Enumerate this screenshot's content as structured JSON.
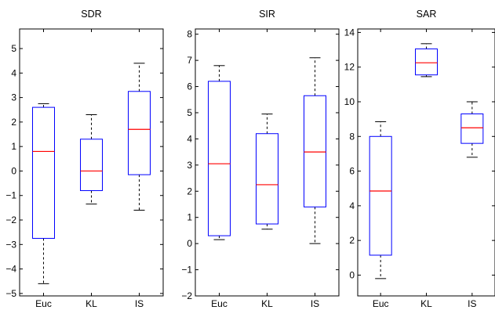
{
  "chart_data": [
    {
      "type": "box",
      "title": "SDR",
      "categories": [
        "Euc",
        "KL",
        "IS"
      ],
      "ylim": [
        -5.1,
        5.8
      ],
      "yticks": [
        -5,
        -4,
        -3,
        -2,
        -1,
        0,
        1,
        2,
        3,
        4,
        5
      ],
      "ytick_labels": [
        "−5",
        "−4",
        "−3",
        "−2",
        "−1",
        "0",
        "1",
        "2",
        "3",
        "4",
        "5"
      ],
      "boxes": [
        {
          "category": "Euc",
          "whisker_low": -4.6,
          "q1": -2.75,
          "median": 0.8,
          "q3": 2.6,
          "whisker_high": 2.75
        },
        {
          "category": "KL",
          "whisker_low": -1.35,
          "q1": -0.8,
          "median": 0.0,
          "q3": 1.3,
          "whisker_high": 2.3
        },
        {
          "category": "IS",
          "whisker_low": -1.6,
          "q1": -0.15,
          "median": 1.7,
          "q3": 3.25,
          "whisker_high": 4.4
        }
      ]
    },
    {
      "type": "box",
      "title": "SIR",
      "categories": [
        "Euc",
        "KL",
        "IS"
      ],
      "ylim": [
        -2.0,
        8.2
      ],
      "yticks": [
        -2,
        -1,
        0,
        1,
        2,
        3,
        4,
        5,
        6,
        7,
        8
      ],
      "ytick_labels": [
        "−2",
        "−1",
        "0",
        "1",
        "2",
        "3",
        "4",
        "5",
        "6",
        "7",
        "8"
      ],
      "boxes": [
        {
          "category": "Euc",
          "whisker_low": 0.15,
          "q1": 0.3,
          "median": 3.05,
          "q3": 6.2,
          "whisker_high": 6.8
        },
        {
          "category": "KL",
          "whisker_low": 0.55,
          "q1": 0.75,
          "median": 2.25,
          "q3": 4.2,
          "whisker_high": 4.95
        },
        {
          "category": "IS",
          "whisker_low": 0.0,
          "q1": 1.4,
          "median": 3.5,
          "q3": 5.65,
          "whisker_high": 7.1
        }
      ]
    },
    {
      "type": "box",
      "title": "SAR",
      "categories": [
        "Euc",
        "KL",
        "IS"
      ],
      "ylim": [
        -1.2,
        14.2
      ],
      "yticks": [
        0,
        2,
        4,
        6,
        8,
        10,
        12,
        14
      ],
      "ytick_labels": [
        "0",
        "2",
        "4",
        "6",
        "8",
        "10",
        "12",
        "14"
      ],
      "boxes": [
        {
          "category": "Euc",
          "whisker_low": -0.2,
          "q1": 1.15,
          "median": 4.85,
          "q3": 8.0,
          "whisker_high": 8.85
        },
        {
          "category": "KL",
          "whisker_low": 11.45,
          "q1": 11.55,
          "median": 12.25,
          "q3": 13.05,
          "whisker_high": 13.35
        },
        {
          "category": "IS",
          "whisker_low": 6.8,
          "q1": 7.6,
          "median": 8.5,
          "q3": 9.3,
          "whisker_high": 10.0
        }
      ]
    }
  ],
  "colors": {
    "box": "#0000ff",
    "median": "#ff0000",
    "whisker": "#000000",
    "axes": "#000000"
  }
}
